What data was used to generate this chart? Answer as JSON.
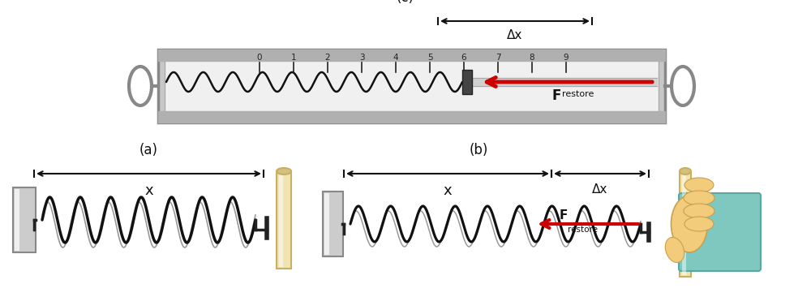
{
  "bg_color": "#ffffff",
  "spring_color_dark": "#111111",
  "spring_color_light": "#999999",
  "wall_color": "#cccccc",
  "wall_highlight": "#ffffff",
  "wall_border": "#888888",
  "arrow_color": "#cc0000",
  "pole_color": "#f0e4b0",
  "pole_highlight": "#ffffff",
  "pole_border": "#c8b060",
  "pole_dark": "#d4c080",
  "dim_arrow_color": "#111111",
  "hand_skin": "#f2cc7a",
  "hand_border": "#c8a050",
  "sleeve_color": "#7ec8c0",
  "sleeve_border": "#5aa8a0",
  "balance_outer": "#c8c8c8",
  "balance_inner": "#e8e8e8",
  "balance_face": "#f0f0f0",
  "balance_border": "#888888",
  "tick_color": "#222222",
  "connector_color": "#222222",
  "tick_labels": [
    "0",
    "1",
    "2",
    "3",
    "4",
    "5",
    "6",
    "7",
    "8",
    "9"
  ]
}
